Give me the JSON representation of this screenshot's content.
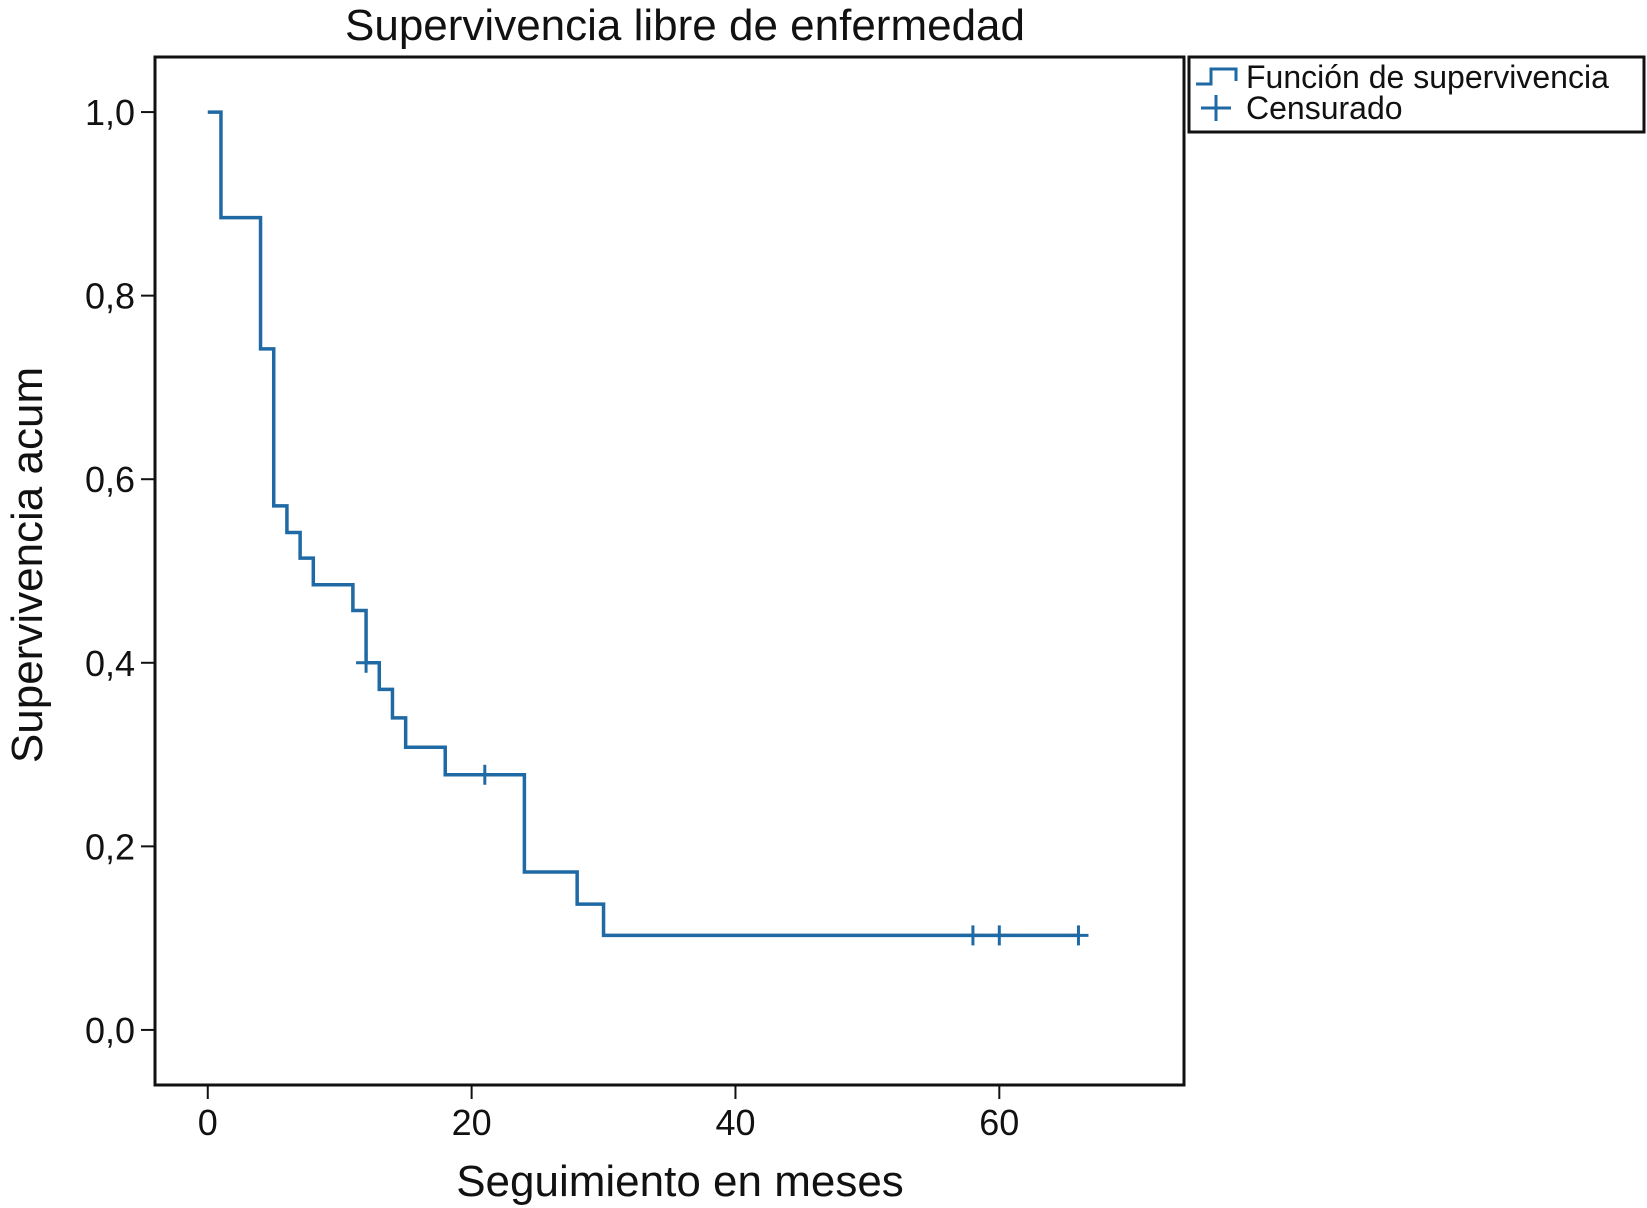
{
  "chart_data": {
    "type": "line",
    "title": "Supervivencia libre de enfermedad",
    "xlabel": "Seguimiento en meses",
    "ylabel": "Supervivencia acum",
    "xlim": [
      -4,
      74
    ],
    "ylim": [
      -0.06,
      1.06
    ],
    "x_ticks": [
      0,
      20,
      40,
      60
    ],
    "x_tick_labels": [
      "0",
      "20",
      "40",
      "60"
    ],
    "y_ticks": [
      0.0,
      0.2,
      0.4,
      0.6,
      0.8,
      1.0
    ],
    "y_tick_labels": [
      "0,0",
      "0,2",
      "0,4",
      "0,6",
      "0,8",
      "1,0"
    ],
    "grid": false,
    "legend_position": "right-outside-top",
    "series": [
      {
        "name": "Función de supervivencia",
        "step": true,
        "color": "#1f6aa5",
        "points": [
          {
            "x": 0,
            "y": 1.0
          },
          {
            "x": 1,
            "y": 0.885
          },
          {
            "x": 4,
            "y": 0.742
          },
          {
            "x": 5,
            "y": 0.571
          },
          {
            "x": 6,
            "y": 0.542
          },
          {
            "x": 7,
            "y": 0.514
          },
          {
            "x": 8,
            "y": 0.485
          },
          {
            "x": 11,
            "y": 0.457
          },
          {
            "x": 12,
            "y": 0.4
          },
          {
            "x": 13,
            "y": 0.371
          },
          {
            "x": 14,
            "y": 0.34
          },
          {
            "x": 15,
            "y": 0.308
          },
          {
            "x": 18,
            "y": 0.278
          },
          {
            "x": 24,
            "y": 0.172
          },
          {
            "x": 28,
            "y": 0.137
          },
          {
            "x": 30,
            "y": 0.103
          },
          {
            "x": 66,
            "y": 0.103
          }
        ]
      },
      {
        "name": "Censurado",
        "marker": "+",
        "color": "#1f6aa5",
        "points": [
          {
            "x": 12,
            "y": 0.4
          },
          {
            "x": 21,
            "y": 0.278
          },
          {
            "x": 58,
            "y": 0.103
          },
          {
            "x": 60,
            "y": 0.103
          },
          {
            "x": 66,
            "y": 0.103
          }
        ]
      }
    ]
  }
}
